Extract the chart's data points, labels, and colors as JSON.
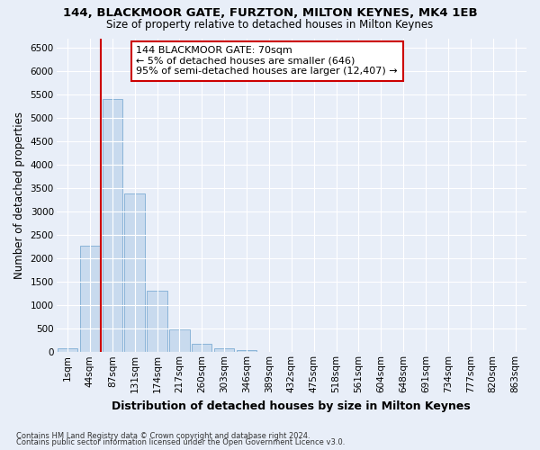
{
  "title": "144, BLACKMOOR GATE, FURZTON, MILTON KEYNES, MK4 1EB",
  "subtitle": "Size of property relative to detached houses in Milton Keynes",
  "xlabel": "Distribution of detached houses by size in Milton Keynes",
  "ylabel": "Number of detached properties",
  "footnote1": "Contains HM Land Registry data © Crown copyright and database right 2024.",
  "footnote2": "Contains public sector information licensed under the Open Government Licence v3.0.",
  "bar_labels": [
    "1sqm",
    "44sqm",
    "87sqm",
    "131sqm",
    "174sqm",
    "217sqm",
    "260sqm",
    "303sqm",
    "346sqm",
    "389sqm",
    "432sqm",
    "475sqm",
    "518sqm",
    "561sqm",
    "604sqm",
    "648sqm",
    "691sqm",
    "734sqm",
    "777sqm",
    "820sqm",
    "863sqm"
  ],
  "bar_values": [
    80,
    2280,
    5400,
    3380,
    1320,
    480,
    185,
    80,
    50,
    0,
    0,
    0,
    0,
    0,
    0,
    0,
    0,
    0,
    0,
    0,
    0
  ],
  "bar_color": "#c8daee",
  "bar_edgecolor": "#8ab4d8",
  "ylim": [
    0,
    6700
  ],
  "yticks": [
    0,
    500,
    1000,
    1500,
    2000,
    2500,
    3000,
    3500,
    4000,
    4500,
    5000,
    5500,
    6000,
    6500
  ],
  "vline_x": 1.5,
  "vline_color": "#cc0000",
  "annotation_text": "144 BLACKMOOR GATE: 70sqm\n← 5% of detached houses are smaller (646)\n95% of semi-detached houses are larger (12,407) →",
  "annotation_box_color": "#ffffff",
  "annotation_box_edgecolor": "#cc0000",
  "background_color": "#e8eef8",
  "grid_color": "#ffffff",
  "title_fontsize": 9.5,
  "subtitle_fontsize": 8.5,
  "axis_label_fontsize": 8.5,
  "tick_fontsize": 7.5,
  "annotation_fontsize": 8
}
